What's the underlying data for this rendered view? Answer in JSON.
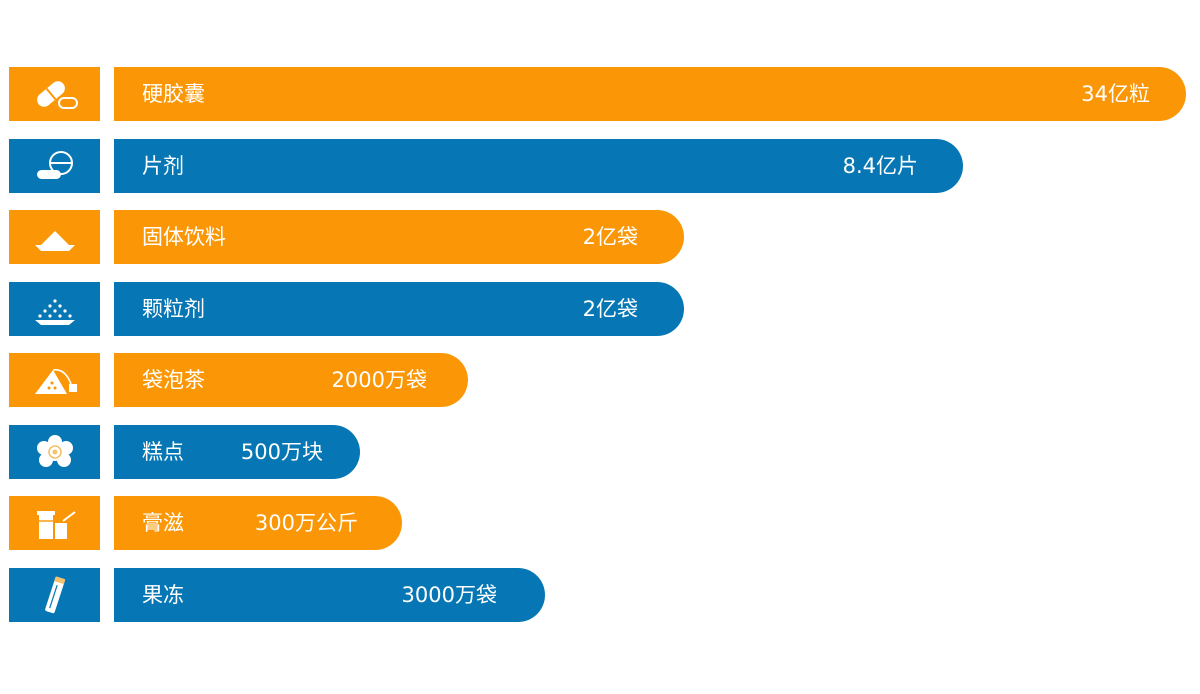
{
  "colors": {
    "orange": "#fb9706",
    "blue": "#0677b4"
  },
  "chart_data": {
    "type": "bar",
    "orientation": "horizontal",
    "categories": [
      "硬胶囊",
      "片剂",
      "固体饮料",
      "颗粒剂",
      "袋泡茶",
      "糕点",
      "膏滋",
      "果冻"
    ],
    "value_labels": [
      "34亿粒",
      "8.4亿片",
      "2亿袋",
      "2亿袋",
      "2000万袋",
      "500万块",
      "300万公斤",
      "3000万袋"
    ],
    "values": [
      34,
      8.4,
      2,
      2,
      0.2,
      0.05,
      0.03,
      0.3
    ],
    "bar_colors": [
      "orange",
      "blue",
      "orange",
      "blue",
      "orange",
      "blue",
      "orange",
      "blue"
    ],
    "icons": [
      "capsule-icon",
      "tablet-icon",
      "powder-icon",
      "granule-icon",
      "tea-bag-icon",
      "pastry-icon",
      "paste-jar-icon",
      "jelly-stick-icon"
    ],
    "legend": "none",
    "grid": false
  }
}
